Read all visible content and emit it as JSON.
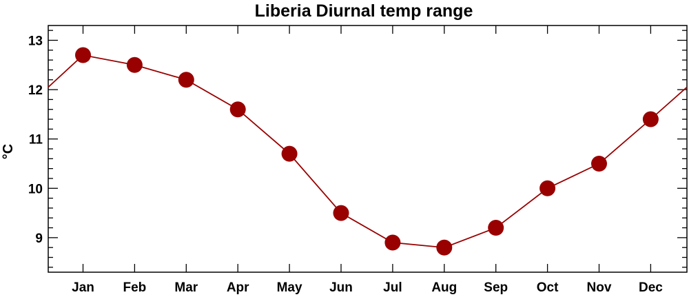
{
  "chart_data": {
    "type": "line",
    "title": "Liberia Diurnal temp range",
    "ylabel": "°C",
    "xlabel": "",
    "categories": [
      "Jan",
      "Feb",
      "Mar",
      "Apr",
      "May",
      "Jun",
      "Jul",
      "Aug",
      "Sep",
      "Oct",
      "Nov",
      "Dec"
    ],
    "values": [
      12.7,
      12.5,
      12.2,
      11.6,
      10.7,
      9.5,
      8.9,
      8.8,
      9.2,
      10.0,
      10.5,
      11.4
    ],
    "ylim": [
      8.3,
      13.3
    ],
    "yticks": [
      "9",
      "10",
      "11",
      "12",
      "13"
    ],
    "grid": false,
    "color": "#990000",
    "marker_color": "#990000"
  }
}
